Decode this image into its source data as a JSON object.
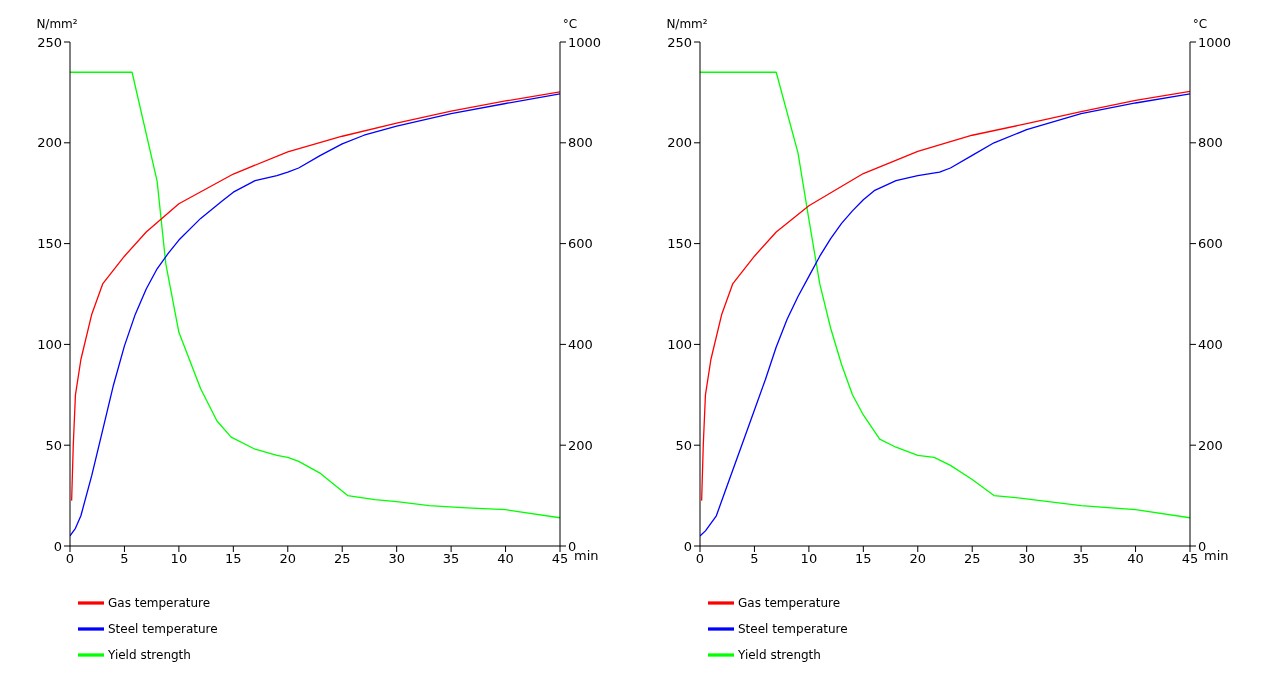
{
  "chart_data": [
    {
      "type": "line",
      "xlabel": "min",
      "ylabel": "N/mm²",
      "y2label": "°C",
      "xlim": [
        0,
        45
      ],
      "xticks": [
        0,
        5,
        10,
        15,
        20,
        25,
        30,
        35,
        40,
        45
      ],
      "ylim": [
        0,
        250
      ],
      "yticks": [
        0,
        50,
        100,
        150,
        200,
        250
      ],
      "y2lim": [
        0,
        1000
      ],
      "y2ticks": [
        0,
        200,
        400,
        600,
        800,
        1000
      ],
      "grid": false,
      "legend": "bottom",
      "marker": "none",
      "line_style": "solid",
      "series": [
        {
          "name": "Yield strength",
          "color": "#00ff00",
          "x": [
            0,
            5.7,
            8,
            8.8,
            10,
            12,
            13.5,
            14.8,
            17,
            19,
            20,
            21,
            23,
            25.5,
            28,
            30,
            33,
            36,
            40,
            45
          ],
          "values": [
            235,
            235,
            181,
            140,
            106,
            78,
            62,
            54,
            48,
            45,
            44,
            42,
            36,
            25,
            23,
            22,
            20,
            19,
            18,
            14
          ]
        },
        {
          "name": "Gas temperature",
          "color": "#ff0000",
          "axis": "y2",
          "x": [
            0.15,
            0.3,
            0.5,
            1,
            2,
            3,
            5,
            7,
            10,
            15,
            20,
            25,
            30,
            35,
            40,
            45
          ],
          "values": [
            90,
            200,
            300,
            370,
            460,
            520,
            575,
            623,
            679,
            738,
            782,
            813,
            839,
            863,
            883,
            901
          ]
        },
        {
          "name": "Steel temperature",
          "color": "#0000ff",
          "axis": "y2",
          "x": [
            0,
            0.5,
            1,
            2,
            3,
            4,
            5,
            6,
            7,
            8,
            9,
            10,
            12,
            14,
            15,
            17,
            19,
            20,
            21,
            23,
            25,
            27,
            30,
            35,
            40,
            45
          ],
          "values": [
            20,
            35,
            60,
            140,
            230,
            320,
            397,
            460,
            510,
            550,
            580,
            607,
            650,
            685,
            702,
            725,
            735,
            742,
            750,
            775,
            798,
            815,
            833,
            858,
            878,
            897
          ]
        }
      ]
    },
    {
      "type": "line",
      "xlabel": "min",
      "ylabel": "N/mm²",
      "y2label": "°C",
      "xlim": [
        0,
        45
      ],
      "xticks": [
        0,
        5,
        10,
        15,
        20,
        25,
        30,
        35,
        40,
        45
      ],
      "ylim": [
        0,
        250
      ],
      "yticks": [
        0,
        50,
        100,
        150,
        200,
        250
      ],
      "y2lim": [
        0,
        1000
      ],
      "y2ticks": [
        0,
        200,
        400,
        600,
        800,
        1000
      ],
      "grid": false,
      "legend": "bottom",
      "marker": "none",
      "line_style": "solid",
      "series": [
        {
          "name": "Yield strength",
          "color": "#00ff00",
          "x": [
            0,
            7,
            9,
            10,
            11,
            12,
            13,
            14,
            15,
            16.5,
            18,
            20,
            21.5,
            23,
            25,
            27,
            29,
            32,
            35,
            40,
            45
          ],
          "values": [
            235,
            235,
            195,
            162,
            130,
            108,
            90,
            75,
            65,
            53,
            49,
            45,
            44,
            40,
            33,
            25,
            24,
            22,
            20,
            18,
            14
          ]
        },
        {
          "name": "Gas temperature",
          "color": "#ff0000",
          "axis": "y2",
          "x": [
            0.15,
            0.3,
            0.5,
            1,
            2,
            3,
            5,
            7,
            10,
            15,
            20,
            25,
            30,
            35,
            40,
            45
          ],
          "values": [
            90,
            200,
            300,
            370,
            460,
            520,
            575,
            623,
            675,
            739,
            783,
            815,
            838,
            862,
            884,
            902
          ]
        },
        {
          "name": "Steel temperature",
          "color": "#0000ff",
          "axis": "y2",
          "x": [
            0,
            0.5,
            1.5,
            2.5,
            4,
            5,
            6,
            7,
            8,
            9,
            10,
            11,
            12,
            13,
            14,
            15,
            16,
            18,
            20,
            22,
            23,
            25,
            27,
            30,
            35,
            40,
            45
          ],
          "values": [
            20,
            30,
            60,
            120,
            210,
            270,
            330,
            395,
            450,
            495,
            535,
            575,
            610,
            640,
            665,
            687,
            705,
            725,
            735,
            742,
            750,
            775,
            800,
            826,
            858,
            879,
            897
          ]
        }
      ]
    }
  ]
}
